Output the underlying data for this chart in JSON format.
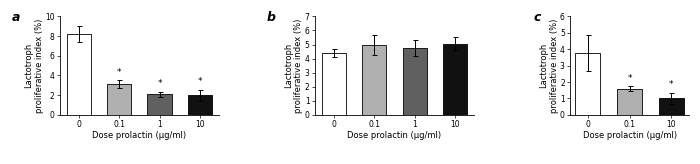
{
  "panels": [
    {
      "label": "a",
      "categories": [
        "0",
        "0.1",
        "1",
        "10"
      ],
      "values": [
        8.2,
        3.1,
        2.1,
        2.0
      ],
      "errors": [
        0.8,
        0.4,
        0.25,
        0.55
      ],
      "colors": [
        "white",
        "#b0b0b0",
        "#606060",
        "#111111"
      ],
      "ylim": [
        0,
        10
      ],
      "yticks": [
        0,
        2,
        4,
        6,
        8,
        10
      ],
      "ylabel": "Lactotroph\nproliferative index (%)",
      "xlabel": "Dose prolactin (μg/ml)",
      "sig": [
        false,
        true,
        true,
        true
      ]
    },
    {
      "label": "b",
      "categories": [
        "0",
        "0.1",
        "1",
        "10"
      ],
      "values": [
        4.4,
        4.95,
        4.75,
        5.05
      ],
      "errors": [
        0.3,
        0.7,
        0.55,
        0.45
      ],
      "colors": [
        "white",
        "#b0b0b0",
        "#606060",
        "#111111"
      ],
      "ylim": [
        0,
        7
      ],
      "yticks": [
        0,
        1,
        2,
        3,
        4,
        5,
        6,
        7
      ],
      "ylabel": "Lactotroph\nproliferative index (%)",
      "xlabel": "Dose prolactin (μg/ml)",
      "sig": [
        false,
        false,
        false,
        false
      ]
    },
    {
      "label": "c",
      "categories": [
        "0",
        "0.1",
        "10"
      ],
      "values": [
        3.75,
        1.6,
        1.0
      ],
      "errors": [
        1.1,
        0.15,
        0.35
      ],
      "colors": [
        "white",
        "#b0b0b0",
        "#111111"
      ],
      "ylim": [
        0,
        6
      ],
      "yticks": [
        0,
        1,
        2,
        3,
        4,
        5,
        6
      ],
      "ylabel": "Lactotroph\nproliferative index (%)",
      "xlabel": "Dose prolactin (μg/ml)",
      "sig": [
        false,
        true,
        true
      ]
    }
  ],
  "bar_width": 0.6,
  "edgecolor": "black",
  "tick_fontsize": 5.5,
  "label_fontsize": 6.0,
  "panel_label_fontsize": 9
}
